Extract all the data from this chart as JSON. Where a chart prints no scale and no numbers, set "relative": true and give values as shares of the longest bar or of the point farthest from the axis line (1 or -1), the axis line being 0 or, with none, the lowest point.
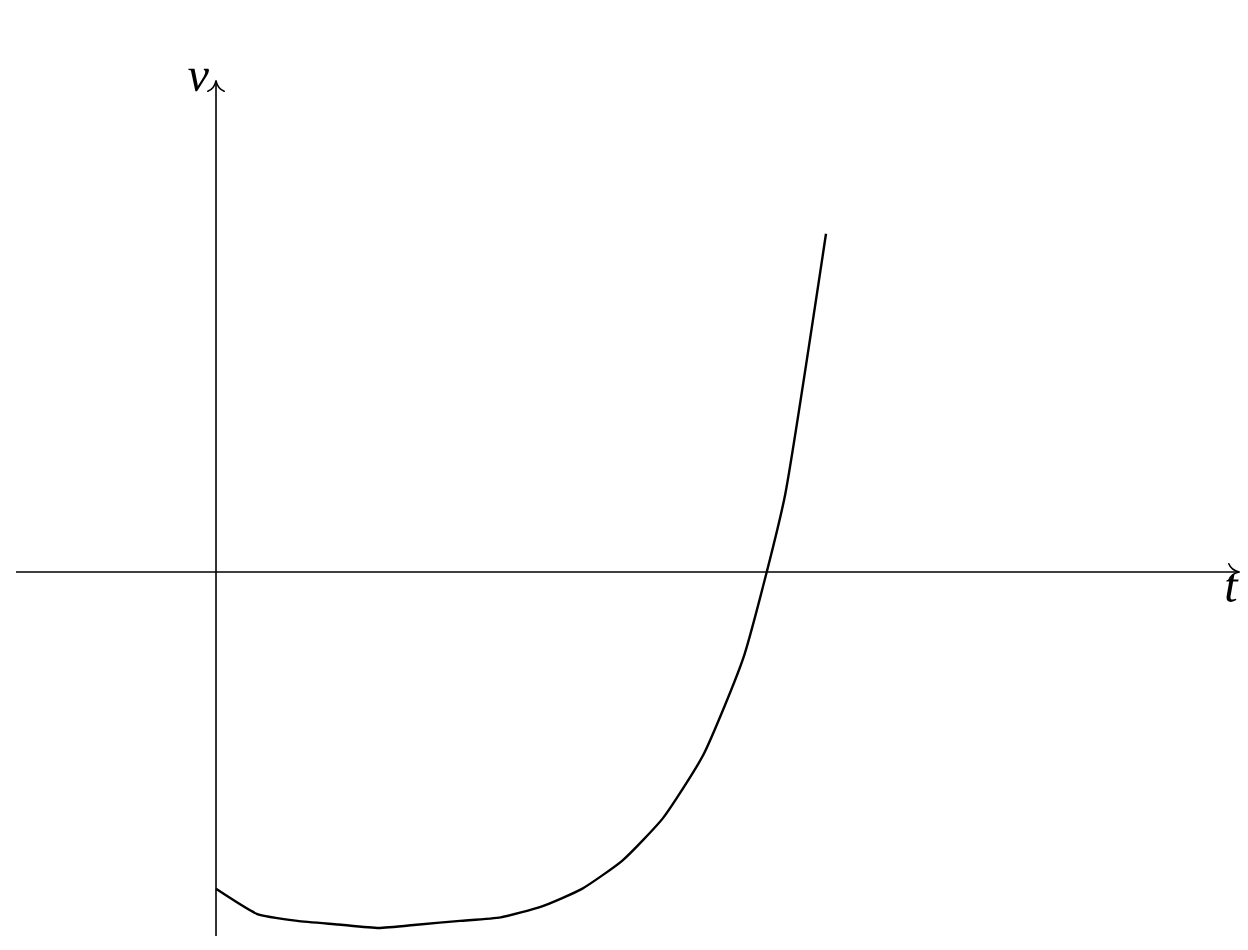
{
  "chart_data": {
    "type": "line",
    "ylabel": "v",
    "annotations": [
      "t"
    ],
    "relative": true,
    "color": "#000000",
    "categories": [
      null,
      null,
      null,
      null,
      null,
      null,
      null,
      null,
      null,
      null,
      null,
      null,
      null,
      null,
      null,
      null
    ],
    "values": [
      -0.89,
      -0.96,
      -0.98,
      -0.99,
      -1,
      -0.99,
      -0.98,
      -0.97,
      -0.94,
      -0.89,
      -0.81,
      -0.69,
      -0.51,
      -0.23,
      0.22,
      0.95
    ]
  }
}
